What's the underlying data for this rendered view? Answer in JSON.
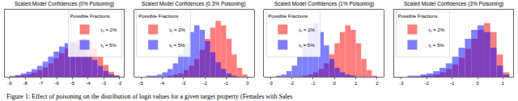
{
  "caption": "Figure 1: Effect of poisoning on the distribution of logit values for a given target property (Females with Sales",
  "chart_data": [
    {
      "type": "histogram",
      "title": "Scaled Model Confidences (0% Poisoning)",
      "bins": [
        -9.0,
        -8.65,
        -8.3,
        -7.95,
        -7.6,
        -7.25,
        -6.9,
        -6.55,
        -6.2,
        -5.85,
        -5.5,
        -5.15,
        -4.8,
        -4.45,
        -4.1,
        -3.75,
        -3.4,
        -3.05,
        -2.7,
        -2.35,
        -2.0
      ],
      "series": [
        {
          "name": "t₀ = 2%",
          "color": "red",
          "values": [
            0,
            1,
            2,
            3,
            5,
            8,
            11,
            16,
            22,
            28,
            34,
            40,
            44,
            46,
            42,
            34,
            24,
            14,
            6,
            2
          ]
        },
        {
          "name": "t₁ = 5%",
          "color": "blue",
          "values": [
            1,
            2,
            4,
            6,
            9,
            13,
            18,
            24,
            30,
            36,
            40,
            42,
            38,
            34,
            27,
            20,
            13,
            7,
            3,
            1
          ]
        }
      ],
      "xlim": [
        -9.3,
        -1.7
      ],
      "xticks": [
        -9,
        -8,
        -7,
        -6,
        -5,
        -4,
        -3,
        -2
      ],
      "ylim": [
        0,
        80
      ],
      "grid": false,
      "tick_labels": "x",
      "legend": "upper right",
      "legend_title": "Possible Fractions"
    },
    {
      "type": "histogram",
      "title": "Scaled Model Confidences (0.3% Poisoning)",
      "bins": [
        -5.0,
        -4.75,
        -4.5,
        -4.25,
        -4.0,
        -3.75,
        -3.5,
        -3.25,
        -3.0,
        -2.75,
        -2.5,
        -2.25,
        -2.0,
        -1.75,
        -1.5,
        -1.25,
        -1.0,
        -0.75,
        -0.5,
        -0.25,
        0.0
      ],
      "series": [
        {
          "name": "t₀ = 2%",
          "color": "red",
          "values": [
            0,
            0,
            0,
            0,
            0,
            1,
            2,
            3,
            6,
            10,
            16,
            24,
            34,
            44,
            50,
            46,
            34,
            20,
            8,
            2
          ]
        },
        {
          "name": "t₁ = 5%",
          "color": "blue",
          "values": [
            0,
            1,
            1,
            2,
            4,
            7,
            12,
            20,
            30,
            40,
            46,
            42,
            32,
            22,
            13,
            7,
            3,
            1,
            0,
            0
          ]
        }
      ],
      "xlim": [
        -5.3,
        0.3
      ],
      "xticks": [
        -5,
        -4,
        -3,
        -2,
        -1,
        0
      ],
      "ylim": [
        0,
        60
      ],
      "grid": false,
      "tick_labels": "x",
      "legend": "upper left",
      "legend_title": "Possible Fractions"
    },
    {
      "type": "histogram",
      "title": "Scaled Model Confidences (1% Poisoning)",
      "bins": [
        -3.0,
        -2.75,
        -2.5,
        -2.25,
        -2.0,
        -1.75,
        -1.5,
        -1.25,
        -1.0,
        -0.75,
        -0.5,
        -0.25,
        0.0,
        0.25,
        0.5,
        0.75,
        1.0,
        1.25,
        1.5,
        1.75,
        2.0
      ],
      "series": [
        {
          "name": "t₀ = 2%",
          "color": "red",
          "values": [
            0,
            0,
            0,
            0,
            0,
            0,
            1,
            2,
            4,
            7,
            12,
            20,
            30,
            40,
            46,
            42,
            30,
            16,
            6,
            1
          ]
        },
        {
          "name": "t₁ = 5%",
          "color": "blue",
          "values": [
            0,
            1,
            2,
            5,
            10,
            18,
            30,
            42,
            48,
            40,
            28,
            16,
            8,
            4,
            2,
            1,
            0,
            0,
            0,
            0
          ]
        }
      ],
      "xlim": [
        -3.3,
        2.3
      ],
      "xticks": [
        -3,
        -2,
        -1,
        0,
        1,
        2
      ],
      "ylim": [
        0,
        60
      ],
      "grid": false,
      "tick_labels": "x",
      "legend": "upper left",
      "legend_title": "Possible Fractions"
    },
    {
      "type": "histogram",
      "title": "Scaled Model Confidences (3% Poisoning)",
      "bins": [
        -3.0,
        -2.75,
        -2.5,
        -2.25,
        -2.0,
        -1.75,
        -1.5,
        -1.25,
        -1.0,
        -0.75,
        -0.5,
        -0.25,
        0.0,
        0.25,
        0.5,
        0.75,
        1.0,
        1.25
      ],
      "series": [
        {
          "name": "t₀ = 2%",
          "color": "red",
          "values": [
            0,
            0,
            0,
            1,
            1,
            2,
            4,
            7,
            11,
            17,
            25,
            34,
            42,
            48,
            40,
            20,
            4
          ]
        },
        {
          "name": "t₁ = 5%",
          "color": "blue",
          "values": [
            0,
            1,
            1,
            2,
            3,
            5,
            8,
            12,
            18,
            26,
            34,
            42,
            46,
            40,
            26,
            10,
            2
          ]
        }
      ],
      "xlim": [
        -3.3,
        1.4
      ],
      "xticks": [
        -3,
        -2,
        -1,
        0,
        1
      ],
      "ylim": [
        0,
        60
      ],
      "grid": false,
      "tick_labels": "x",
      "legend": "upper left",
      "legend_title": "Possible Fractions"
    }
  ]
}
